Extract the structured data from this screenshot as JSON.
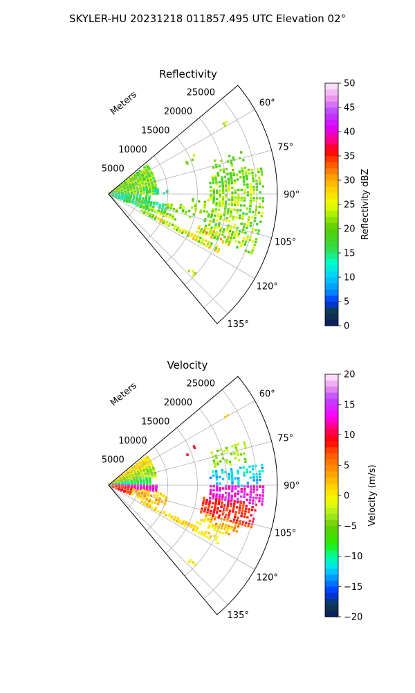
{
  "figure": {
    "suptitle": "SKYLER-HU  20231218  011857.495 UTC Elevation 02°"
  },
  "chart_data": [
    {
      "type": "heatmap",
      "projection": "polar-sector",
      "title": "Reflectivity",
      "range_axis_label": "Meters",
      "theta_ticks_deg": [
        60,
        75,
        90,
        105,
        120,
        135
      ],
      "theta_tick_labels": [
        "60°",
        "75°",
        "90°",
        "105°",
        "120°",
        "135°"
      ],
      "theta_range_deg": [
        50,
        140
      ],
      "r_ticks": [
        5000,
        10000,
        15000,
        20000,
        25000
      ],
      "r_tick_labels": [
        "5000",
        "10000",
        "15000",
        "20000",
        "25000"
      ],
      "r_max": 28500,
      "grid": true,
      "colorbar": {
        "label": "Reflectivity dBZ",
        "min": 0,
        "max": 50,
        "ticks": [
          0,
          5,
          10,
          15,
          20,
          25,
          30,
          35,
          40,
          45,
          50
        ],
        "tick_labels": [
          "0",
          "5",
          "10",
          "15",
          "20",
          "25",
          "30",
          "35",
          "40",
          "45",
          "50"
        ],
        "stops": [
          [
            0,
            "#0a1a60"
          ],
          [
            3,
            "#0f3b4a"
          ],
          [
            5,
            "#0033ff"
          ],
          [
            7,
            "#0088ff"
          ],
          [
            10,
            "#00ccff"
          ],
          [
            13,
            "#00ffcc"
          ],
          [
            16,
            "#33dd44"
          ],
          [
            20,
            "#55cc00"
          ],
          [
            23,
            "#aaee00"
          ],
          [
            25,
            "#eeff00"
          ],
          [
            28,
            "#ffd400"
          ],
          [
            31,
            "#ff9900"
          ],
          [
            34,
            "#ff4400"
          ],
          [
            36,
            "#ff0000"
          ],
          [
            38,
            "#ff0077"
          ],
          [
            41,
            "#dd00ff"
          ],
          [
            44,
            "#bb44ff"
          ],
          [
            47,
            "#ee99ee"
          ],
          [
            50,
            "#ffeeff"
          ]
        ]
      },
      "regions": [
        {
          "th": [
            53,
            90
          ],
          "r": [
            0,
            8000
          ],
          "v": [
            15,
            26
          ],
          "d": 0.9
        },
        {
          "th": [
            90,
            112
          ],
          "r": [
            0,
            3500
          ],
          "v": [
            10,
            17
          ],
          "d": 0.9
        },
        {
          "th": [
            93,
            110
          ],
          "r": [
            3000,
            7000
          ],
          "v": [
            12,
            20
          ],
          "d": 0.55
        },
        {
          "th": [
            100,
            112
          ],
          "r": [
            5000,
            10000
          ],
          "v": [
            12,
            20
          ],
          "d": 0.55
        },
        {
          "th": [
            80,
            112
          ],
          "r": [
            17000,
            26000
          ],
          "v": [
            16,
            26
          ],
          "d": 0.6
        },
        {
          "th": [
            72,
            85
          ],
          "r": [
            18000,
            24000
          ],
          "v": [
            16,
            23
          ],
          "d": 0.35
        },
        {
          "th": [
            93,
            106
          ],
          "r": [
            14000,
            17000
          ],
          "v": [
            18,
            24
          ],
          "d": 0.3
        },
        {
          "th": [
            115,
            118
          ],
          "r": [
            6000,
            21000
          ],
          "v": [
            18,
            30
          ],
          "d": 0.7
        },
        {
          "th": [
            108,
            111
          ],
          "r": [
            5000,
            12000
          ],
          "v": [
            18,
            28
          ],
          "d": 0.6
        },
        {
          "th": [
            109,
            113
          ],
          "r": [
            16000,
            22000
          ],
          "v": [
            20,
            32
          ],
          "d": 0.6
        },
        {
          "th": [
            98,
            104
          ],
          "r": [
            10000,
            15000
          ],
          "v": [
            18,
            25
          ],
          "d": 0.25
        },
        {
          "th": [
            82,
            89
          ],
          "r": [
            6000,
            10000
          ],
          "v": [
            10,
            18
          ],
          "d": 0.25
        },
        {
          "th": [
            65,
            70
          ],
          "r": [
            14000,
            16000
          ],
          "v": [
            18,
            24
          ],
          "d": 0.3
        },
        {
          "th": [
            58,
            60
          ],
          "r": [
            22000,
            24000
          ],
          "v": [
            20,
            28
          ],
          "d": 0.5
        },
        {
          "th": [
            132,
            134
          ],
          "r": [
            18500,
            20000
          ],
          "v": [
            20,
            28
          ],
          "d": 0.7
        }
      ]
    },
    {
      "type": "heatmap",
      "projection": "polar-sector",
      "title": "Velocity",
      "range_axis_label": "Meters",
      "theta_ticks_deg": [
        60,
        75,
        90,
        105,
        120,
        135
      ],
      "theta_tick_labels": [
        "60°",
        "75°",
        "90°",
        "105°",
        "120°",
        "135°"
      ],
      "theta_range_deg": [
        50,
        140
      ],
      "r_ticks": [
        5000,
        10000,
        15000,
        20000,
        25000
      ],
      "r_tick_labels": [
        "5000",
        "10000",
        "15000",
        "20000",
        "25000"
      ],
      "r_max": 28500,
      "grid": true,
      "colorbar": {
        "label": "Velocity (m/s)",
        "min": -20,
        "max": 20,
        "ticks": [
          -20,
          -15,
          -10,
          -5,
          0,
          5,
          10,
          15,
          20
        ],
        "tick_labels": [
          "−20",
          "−15",
          "−10",
          "−5",
          "0",
          "5",
          "10",
          "15",
          "20"
        ],
        "stops": [
          [
            -20,
            "#0a1a60"
          ],
          [
            -18,
            "#0f3b4a"
          ],
          [
            -16,
            "#0033ff"
          ],
          [
            -14,
            "#0088ff"
          ],
          [
            -12,
            "#00ddff"
          ],
          [
            -10,
            "#00ff99"
          ],
          [
            -8,
            "#22ee00"
          ],
          [
            -5,
            "#66cc00"
          ],
          [
            -3,
            "#aaee22"
          ],
          [
            -1,
            "#eeff00"
          ],
          [
            1,
            "#ffdd00"
          ],
          [
            4,
            "#ff9900"
          ],
          [
            7,
            "#ff5500"
          ],
          [
            9,
            "#ff0000"
          ],
          [
            11,
            "#ff0066"
          ],
          [
            13,
            "#ff00ff"
          ],
          [
            16,
            "#bb44ff"
          ],
          [
            18,
            "#ee99ee"
          ],
          [
            20,
            "#ffeeff"
          ]
        ]
      },
      "regions": [
        {
          "th": [
            53,
            66
          ],
          "r": [
            0,
            8000
          ],
          "v": [
            -2,
            3
          ],
          "d": 0.9
        },
        {
          "th": [
            66,
            80
          ],
          "r": [
            0,
            8000
          ],
          "v": [
            -6,
            -1
          ],
          "d": 0.85
        },
        {
          "th": [
            80,
            90
          ],
          "r": [
            0,
            7000
          ],
          "v": [
            -12,
            -6
          ],
          "d": 0.85
        },
        {
          "th": [
            90,
            97
          ],
          "r": [
            0,
            8000
          ],
          "v": [
            11,
            15
          ],
          "d": 0.85
        },
        {
          "th": [
            97,
            112
          ],
          "r": [
            0,
            4000
          ],
          "v": [
            5,
            10
          ],
          "d": 0.8
        },
        {
          "th": [
            98,
            112
          ],
          "r": [
            4000,
            10000
          ],
          "v": [
            -1,
            5
          ],
          "d": 0.5
        },
        {
          "th": [
            82,
            90
          ],
          "r": [
            17000,
            26000
          ],
          "v": [
            -14,
            -10
          ],
          "d": 0.45
        },
        {
          "th": [
            90,
            97
          ],
          "r": [
            17000,
            26000
          ],
          "v": [
            11,
            16
          ],
          "d": 0.75
        },
        {
          "th": [
            97,
            106
          ],
          "r": [
            16000,
            25000
          ],
          "v": [
            6,
            11
          ],
          "d": 0.65
        },
        {
          "th": [
            106,
            112
          ],
          "r": [
            17000,
            23000
          ],
          "v": [
            1,
            6
          ],
          "d": 0.5
        },
        {
          "th": [
            115,
            118
          ],
          "r": [
            6000,
            21000
          ],
          "v": [
            -1,
            3
          ],
          "d": 0.7
        },
        {
          "th": [
            109,
            113
          ],
          "r": [
            16000,
            22000
          ],
          "v": [
            -1,
            2
          ],
          "d": 0.55
        },
        {
          "th": [
            72,
            80
          ],
          "r": [
            18000,
            24000
          ],
          "v": [
            -6,
            -2
          ],
          "d": 0.3
        },
        {
          "th": [
            65,
            70
          ],
          "r": [
            14000,
            16000
          ],
          "v": [
            8,
            11
          ],
          "d": 0.3
        },
        {
          "th": [
            58,
            60
          ],
          "r": [
            22000,
            24000
          ],
          "v": [
            -2,
            2
          ],
          "d": 0.5
        },
        {
          "th": [
            132,
            134
          ],
          "r": [
            18500,
            20000
          ],
          "v": [
            -1,
            2
          ],
          "d": 0.7
        }
      ]
    }
  ]
}
